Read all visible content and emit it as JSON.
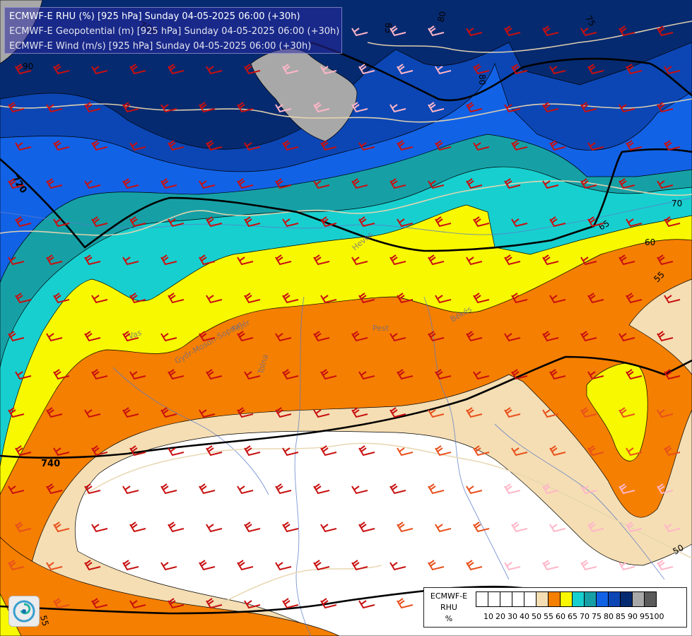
{
  "header": {
    "lines": [
      "ECMWF-E RHU (%) [925 hPa] Sunday 04-05-2025 06:00 (+30h)",
      "ECMWF-E Geopotential (m) [925 hPa] Sunday 04-05-2025 06:00 (+30h)",
      "ECMWF-E Wind (m/s) [925 hPa] Sunday 04-05-2025 06:00 (+30h)"
    ]
  },
  "map": {
    "rhu_contour_labels": [
      "85",
      "80",
      "75",
      "90",
      "80",
      "70",
      "65",
      "60",
      "55",
      "50",
      "65",
      "55"
    ],
    "geopotential_labels": [
      "720",
      "740",
      "700"
    ],
    "place_labels": [
      "Vas",
      "Fejér",
      "Pest",
      "Békés",
      "Tolna",
      "Győr-Moson-Sopron",
      "Heves"
    ],
    "colors": {
      "rhu_50": "#f5deb3",
      "rhu_55": "#f57f00",
      "rhu_60": "#f8f800",
      "rhu_65": "#18cfcf",
      "rhu_70": "#16a0a6",
      "rhu_75": "#1262e6",
      "rhu_80": "#0b46b4",
      "rhu_85": "#062a70",
      "rhu_90": "#a8a8a8",
      "wind_strong": "#c81010",
      "wind_medium": "#e8501c",
      "wind_light": "#ffb6c8",
      "border": "#e8d6b0",
      "river": "#5a7cc8",
      "geopotential_line": "#000000"
    }
  },
  "legend": {
    "name_lines": [
      "ECMWF-E",
      "RHU",
      "%"
    ],
    "ticks": [
      "10",
      "20",
      "30",
      "40",
      "50",
      "55",
      "60",
      "65",
      "70",
      "75",
      "80",
      "85",
      "90",
      "95",
      "100"
    ],
    "swatch_colors": [
      "#ffffff",
      "#ffffff",
      "#ffffff",
      "#ffffff",
      "#ffffff",
      "#f5deb3",
      "#f57f00",
      "#f8f800",
      "#18cfcf",
      "#16a0a6",
      "#1262e6",
      "#0b46b4",
      "#062a70",
      "#a8a8a8",
      "#5a5a5a"
    ]
  },
  "logo": {
    "icon": "swirl-logo-icon"
  }
}
